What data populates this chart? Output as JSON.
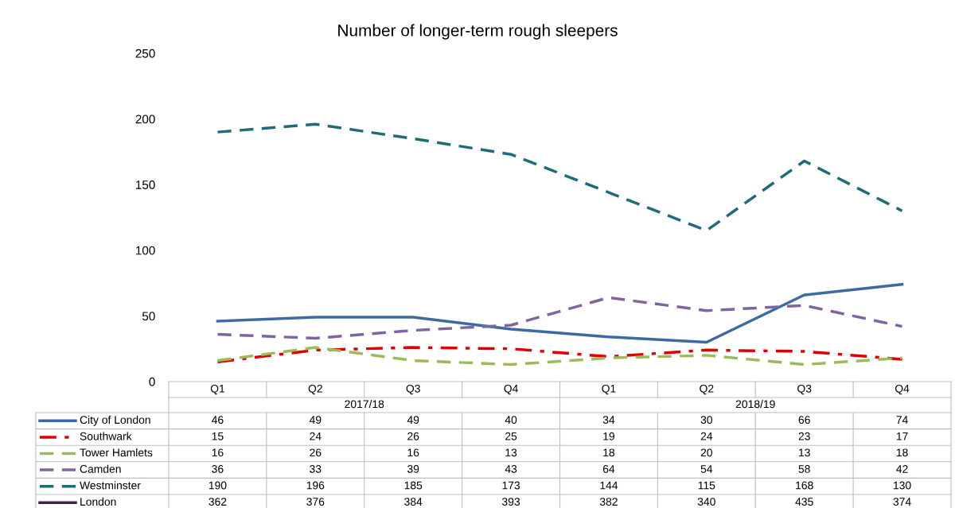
{
  "chart_data": {
    "type": "line",
    "title": "Number of longer-term rough sleepers",
    "categories": [
      "Q1",
      "Q2",
      "Q3",
      "Q4",
      "Q1",
      "Q2",
      "Q3",
      "Q4"
    ],
    "annotations": [
      "2017/18",
      "2018/19"
    ],
    "ylim": [
      0,
      250
    ],
    "yticks": [
      0,
      50,
      100,
      150,
      200,
      250
    ],
    "grid": false,
    "data_labels": true,
    "legend": "bottom",
    "tick_labels": "y",
    "series": [
      {
        "name": "City of London",
        "color": "#3d6aa0",
        "line_style": "solid",
        "values": [
          46,
          49,
          49,
          40,
          34,
          30,
          66,
          74
        ]
      },
      {
        "name": "Southwark",
        "color": "#e00000",
        "line_style": "dashdot",
        "values": [
          15,
          24,
          26,
          25,
          19,
          24,
          23,
          17
        ]
      },
      {
        "name": "Tower Hamlets",
        "color": "#9bbb59",
        "line_style": "dashed",
        "values": [
          16,
          26,
          16,
          13,
          18,
          20,
          13,
          18
        ]
      },
      {
        "name": "Camden",
        "color": "#8064a2",
        "line_style": "dashed",
        "values": [
          36,
          33,
          39,
          43,
          64,
          54,
          58,
          42
        ]
      },
      {
        "name": "Westminster",
        "color": "#1f6b7a",
        "line_style": "dashed",
        "values": [
          190,
          196,
          185,
          173,
          144,
          115,
          168,
          130
        ]
      },
      {
        "name": "London",
        "color": "#3b2a3f",
        "line_style": "solid",
        "values": [
          null,
          null,
          null,
          null,
          null,
          null,
          null,
          null
        ],
        "value_labels": [
          "362",
          "376",
          "384",
          "393",
          "382",
          "340",
          "435",
          "374"
        ]
      }
    ]
  }
}
